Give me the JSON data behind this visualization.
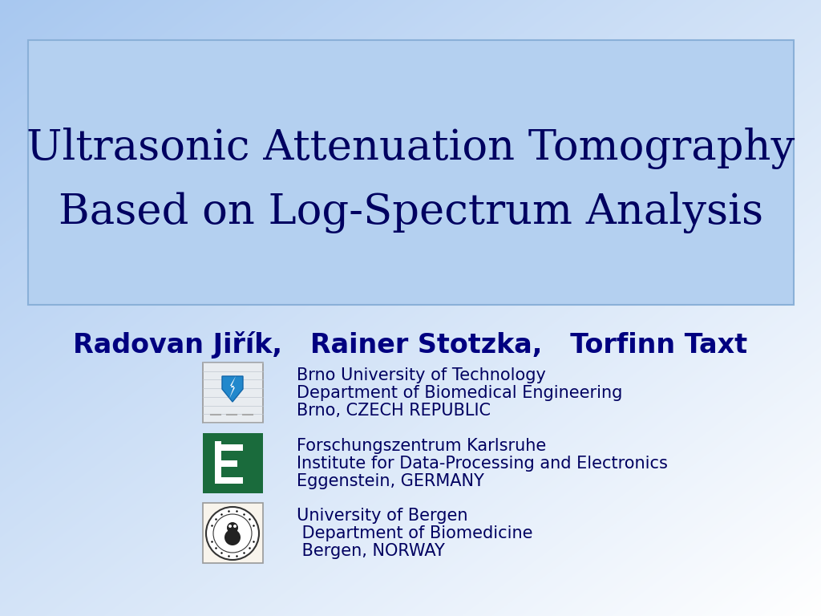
{
  "title_line1": "Ultrasonic Attenuation Tomography",
  "title_line2": "Based on Log-Spectrum Analysis",
  "authors": "Radovan Jiřík,   Rainer Stotzka,   Torfinn Taxt",
  "affiliations": [
    {
      "logo_type": "brno",
      "lines": [
        "Brno University of Technology",
        "Department of Biomedical Engineering",
        "Brno, CZECH REPUBLIC"
      ]
    },
    {
      "logo_type": "karlsruhe",
      "lines": [
        "Forschungszentrum Karlsruhe",
        "Institute for Data-Processing and Electronics",
        "Eggenstein, GERMANY"
      ]
    },
    {
      "logo_type": "bergen",
      "lines": [
        "University of Bergen",
        " Department of Biomedicine",
        " Bergen, NORWAY"
      ]
    }
  ],
  "bg_top_left": "#a8c8f0",
  "bg_top_right": "#ddeeff",
  "bg_bottom_left": "#b8d4f0",
  "bg_bottom_right": "#ffffff",
  "title_box_color": "#b4d0f0",
  "title_box_edge": "#8ab0d8",
  "title_text_color": "#000060",
  "authors_color": "#000080",
  "affiliation_text_color": "#000060",
  "title_fontsize": 38,
  "authors_fontsize": 24,
  "affiliation_fontsize": 15,
  "brno_logo_bg": "#e8ecf0",
  "karlsruhe_logo_bg": "#1a6b3c",
  "bergen_logo_bg": "#f8f4ec"
}
